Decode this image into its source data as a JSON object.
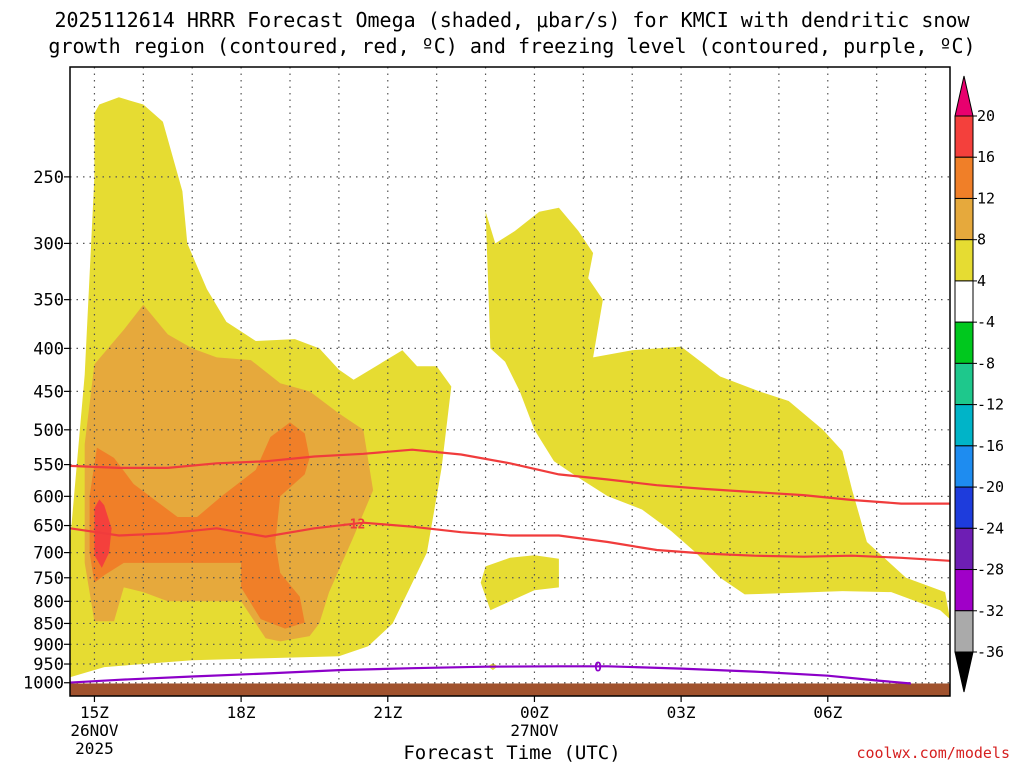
{
  "title": {
    "line1": "2025112614 HRRR Forecast Omega (shaded, μbar/s) for KMCI with dendritic snow",
    "line2": "growth region (contoured, red, ºC) and freezing level (contoured, purple, ºC)"
  },
  "credit": "coolwx.com/models",
  "chart_data": {
    "type": "heatmap",
    "xlabel": "Forecast Time (UTC)",
    "ylabel": "",
    "x_range_hours": [
      14.5,
      32.5
    ],
    "y_range_hpa": [
      185,
      1037
    ],
    "pressure_ticks": [
      "250",
      "300",
      "350",
      "400",
      "450",
      "500",
      "550",
      "600",
      "650",
      "700",
      "750",
      "800",
      "850",
      "900",
      "950",
      "1000"
    ],
    "time_ticks": [
      {
        "hour": 15,
        "label": "15Z",
        "date": "26NOV",
        "year": "2025"
      },
      {
        "hour": 18,
        "label": "18Z"
      },
      {
        "hour": 21,
        "label": "21Z"
      },
      {
        "hour": 24,
        "label": "00Z",
        "date": "27NOV"
      },
      {
        "hour": 27,
        "label": "03Z"
      },
      {
        "hour": 30,
        "label": "06Z"
      }
    ],
    "colorbar": {
      "labels": [
        "20",
        "16",
        "12",
        "8",
        "4",
        "-4",
        "-8",
        "-12",
        "-16",
        "-20",
        "-24",
        "-28",
        "-32",
        "-36"
      ],
      "colors": [
        "#e8006e",
        "#f4403c",
        "#f07f28",
        "#e6a93c",
        "#e6dc32",
        "#ffffff",
        "#00c81e",
        "#1ec88c",
        "#00b4c8",
        "#1e8cf0",
        "#1e3cdc",
        "#6e1eb4",
        "#a000c8",
        "#aaaaaa",
        "#000000"
      ]
    },
    "series": [
      {
        "name": "-12",
        "color": "#f03c3c",
        "x": [
          14.5,
          15.5,
          16.5,
          17.5,
          18.5,
          19.5,
          20.5,
          21.5,
          22.5,
          23.5,
          24.5,
          25.5,
          26.5,
          27.5,
          28.5,
          29.5,
          30.5,
          31.5,
          32.5
        ],
        "y": [
          655,
          668,
          664,
          655,
          670,
          655,
          645,
          652,
          662,
          668,
          668,
          680,
          695,
          702,
          706,
          708,
          706,
          710,
          716
        ]
      },
      {
        "name": "",
        "color": "#f03c3c",
        "x": [
          14.5,
          15.5,
          16.5,
          17.5,
          18.5,
          19.5,
          20.5,
          21.5,
          22.5,
          23.5,
          24.5,
          25.5,
          26.5,
          27.5,
          28.5,
          29.5,
          30.5,
          31.5,
          32.5
        ],
        "y": [
          552,
          555,
          555,
          548,
          545,
          538,
          534,
          528,
          535,
          548,
          565,
          573,
          582,
          588,
          593,
          598,
          606,
          612,
          612
        ]
      },
      {
        "name": "0",
        "color": "#8c00c8",
        "x": [
          14.3,
          15.5,
          17,
          18.5,
          20,
          21.5,
          23,
          24.5,
          25.5,
          27,
          28.5,
          30,
          31,
          31.7
        ],
        "y": [
          1001,
          992,
          983,
          975,
          966,
          961,
          957,
          956,
          956,
          962,
          970,
          981,
          994,
          1002
        ]
      }
    ],
    "terrain_color": "#a0522d",
    "surface_hpa": 1002,
    "shaded_regions": [
      {
        "level": "4",
        "color": "#e6dc32",
        "points": [
          [
            14.5,
            985
          ],
          [
            14.5,
            680
          ],
          [
            14.8,
            430
          ],
          [
            15,
            250
          ],
          [
            15,
            210
          ],
          [
            15.1,
            205
          ],
          [
            15.5,
            201
          ],
          [
            16,
            205
          ],
          [
            16.4,
            215
          ],
          [
            16.8,
            260
          ],
          [
            16.9,
            300
          ],
          [
            17.3,
            340
          ],
          [
            17.7,
            372
          ],
          [
            18.3,
            392
          ],
          [
            19.1,
            390
          ],
          [
            19.6,
            400
          ],
          [
            20,
            424
          ],
          [
            20.3,
            436
          ],
          [
            21.3,
            402
          ],
          [
            21.6,
            420
          ],
          [
            22,
            420
          ],
          [
            22.3,
            444
          ],
          [
            22.1,
            555
          ],
          [
            21.8,
            700
          ],
          [
            21.1,
            850
          ],
          [
            20.6,
            905
          ],
          [
            20,
            930
          ],
          [
            18.5,
            935
          ],
          [
            17,
            940
          ],
          [
            15.2,
            958
          ]
        ]
      },
      {
        "level": "4",
        "color": "#e6dc32",
        "points": [
          [
            23,
            275
          ],
          [
            23.2,
            300
          ],
          [
            23.6,
            290
          ],
          [
            24.1,
            275
          ],
          [
            24.5,
            272
          ],
          [
            24.9,
            290
          ],
          [
            25.2,
            308
          ],
          [
            25.1,
            330
          ],
          [
            25.4,
            350
          ],
          [
            25.2,
            410
          ],
          [
            26,
            402
          ],
          [
            27,
            398
          ],
          [
            27.8,
            432
          ],
          [
            28.6,
            450
          ],
          [
            29.2,
            462
          ],
          [
            29.9,
            500
          ],
          [
            30.3,
            530
          ],
          [
            30.5,
            590
          ],
          [
            30.8,
            680
          ],
          [
            31.6,
            750
          ],
          [
            32.4,
            780
          ],
          [
            32.5,
            840
          ],
          [
            32.3,
            820
          ],
          [
            31.3,
            780
          ],
          [
            30.3,
            778
          ],
          [
            29.2,
            782
          ],
          [
            28.3,
            785
          ],
          [
            27.8,
            750
          ],
          [
            27.3,
            700
          ],
          [
            26.8,
            660
          ],
          [
            26.2,
            622
          ],
          [
            25.5,
            600
          ],
          [
            24.9,
            570
          ],
          [
            24.4,
            545
          ],
          [
            24,
            500
          ],
          [
            23.7,
            450
          ],
          [
            23.4,
            415
          ],
          [
            23.1,
            400
          ]
        ]
      },
      {
        "level": "4",
        "color": "#e6dc32",
        "points": [
          [
            23,
            727
          ],
          [
            23.5,
            710
          ],
          [
            24,
            705
          ],
          [
            24.5,
            712
          ],
          [
            24.5,
            770
          ],
          [
            24,
            776
          ],
          [
            23.5,
            800
          ],
          [
            23.1,
            820
          ],
          [
            22.9,
            760
          ]
        ]
      },
      {
        "level": "4",
        "color": "#e6dc32",
        "points": [
          [
            23.05,
            956
          ],
          [
            23.15,
            948
          ],
          [
            23.25,
            956
          ],
          [
            23.15,
            966
          ]
        ]
      },
      {
        "level": "8",
        "color": "#e6a93c",
        "points": [
          [
            15,
            418
          ],
          [
            15.6,
            380
          ],
          [
            16,
            355
          ],
          [
            16.5,
            385
          ],
          [
            17,
            400
          ],
          [
            17.5,
            410
          ],
          [
            18.2,
            413
          ],
          [
            18.8,
            440
          ],
          [
            19.4,
            450
          ],
          [
            20,
            478
          ],
          [
            20.5,
            500
          ],
          [
            20.7,
            590
          ],
          [
            20.3,
            670
          ],
          [
            19.8,
            780
          ],
          [
            19.6,
            850
          ],
          [
            19.4,
            880
          ],
          [
            18.8,
            893
          ],
          [
            18.5,
            885
          ],
          [
            18,
            800
          ],
          [
            16.5,
            800
          ],
          [
            16,
            780
          ],
          [
            15.6,
            770
          ],
          [
            15.4,
            845
          ],
          [
            15,
            845
          ],
          [
            14.8,
            720
          ],
          [
            14.8,
            520
          ]
        ]
      },
      {
        "level": "12",
        "color": "#f07f28",
        "points": [
          [
            15.05,
            525
          ],
          [
            15.4,
            540
          ],
          [
            15.8,
            580
          ],
          [
            16.3,
            610
          ],
          [
            16.7,
            635
          ],
          [
            17.1,
            635
          ],
          [
            17.6,
            600
          ],
          [
            18.3,
            558
          ],
          [
            18.6,
            510
          ],
          [
            19,
            490
          ],
          [
            19.3,
            505
          ],
          [
            19.4,
            540
          ],
          [
            19.3,
            565
          ],
          [
            18.8,
            600
          ],
          [
            18.7,
            680
          ],
          [
            18.8,
            740
          ],
          [
            19.2,
            790
          ],
          [
            19.3,
            848
          ],
          [
            18.9,
            862
          ],
          [
            18.4,
            840
          ],
          [
            18,
            770
          ],
          [
            18,
            720
          ],
          [
            16.5,
            720
          ],
          [
            15.6,
            720
          ],
          [
            15.2,
            745
          ],
          [
            15,
            760
          ],
          [
            14.9,
            700
          ],
          [
            14.9,
            600
          ]
        ]
      },
      {
        "level": "16",
        "color": "#f4403c",
        "points": [
          [
            15,
            620
          ],
          [
            15.1,
            605
          ],
          [
            15.2,
            615
          ],
          [
            15.35,
            655
          ],
          [
            15.3,
            700
          ],
          [
            15.15,
            730
          ],
          [
            15,
            705
          ]
        ]
      }
    ]
  }
}
